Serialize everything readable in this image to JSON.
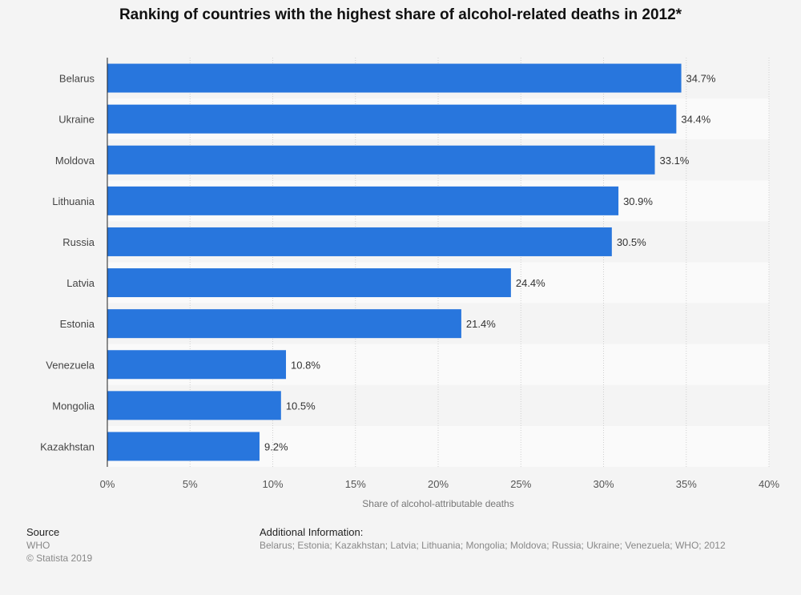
{
  "chart_data": {
    "type": "bar",
    "orientation": "horizontal",
    "title": "Ranking of countries with the highest share of alcohol-related deaths in 2012*",
    "xlabel": "Share of alcohol-attributable deaths",
    "ylabel": "",
    "categories": [
      "Belarus",
      "Ukraine",
      "Moldova",
      "Lithuania",
      "Russia",
      "Latvia",
      "Estonia",
      "Venezuela",
      "Mongolia",
      "Kazakhstan"
    ],
    "values": [
      34.7,
      34.4,
      33.1,
      30.9,
      30.5,
      24.4,
      21.4,
      10.8,
      10.5,
      9.2
    ],
    "value_labels": [
      "34.7%",
      "34.4%",
      "33.1%",
      "30.9%",
      "30.5%",
      "24.4%",
      "21.4%",
      "10.8%",
      "10.5%",
      "9.2%"
    ],
    "xlim": [
      0,
      40
    ],
    "xticks": [
      0,
      5,
      10,
      15,
      20,
      25,
      30,
      35,
      40
    ],
    "xtick_labels": [
      "0%",
      "5%",
      "10%",
      "15%",
      "20%",
      "25%",
      "30%",
      "35%",
      "40%"
    ],
    "grid": true,
    "bar_color": "#2876dd"
  },
  "footer": {
    "source_heading": "Source",
    "source_text": "WHO",
    "copyright": "© Statista 2019",
    "additional_heading": "Additional Information:",
    "additional_text": "Belarus; Estonia; Kazakhstan; Latvia; Lithuania; Mongolia; Moldova; Russia; Ukraine; Venezuela; WHO; 2012"
  }
}
